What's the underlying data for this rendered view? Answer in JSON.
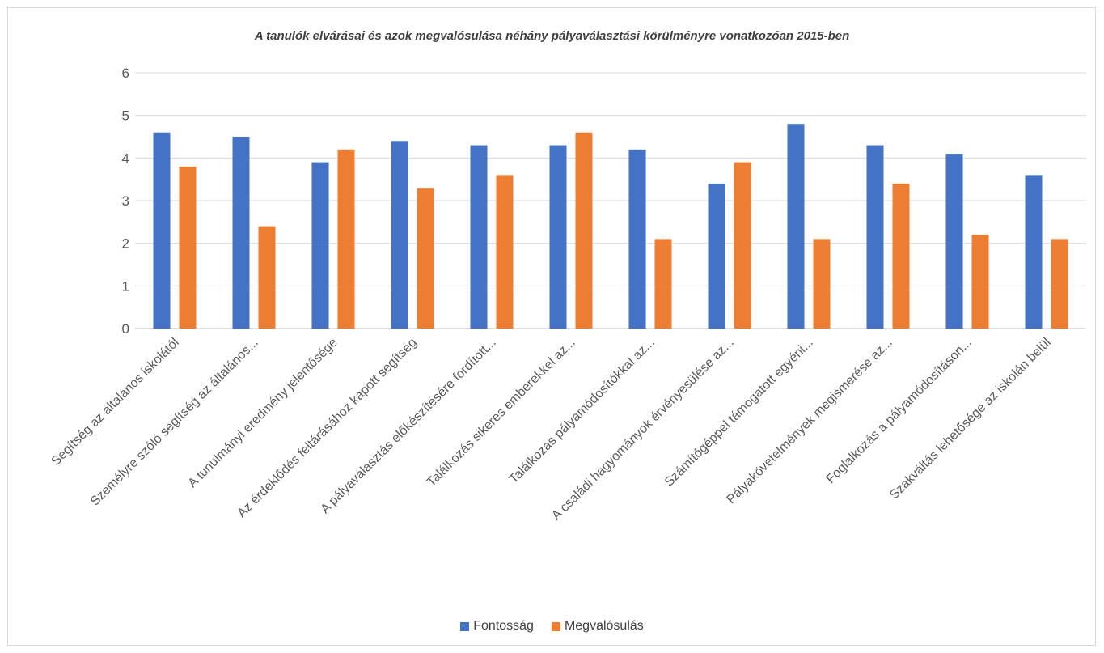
{
  "chart_data": {
    "type": "bar",
    "title": "A tanulók elvárásai és azok megvalósulása néhány pályaválasztási körülményre vonatkozóan 2015-ben",
    "categories": [
      "Segítség az általános iskolától",
      "Személyre szóló segítség az általános...",
      "A tunulmányi eredmény jelentősége",
      "Az érdeklődés feltárásához kapott segítség",
      "A pályaválasztás előkészítésére fordított...",
      "Találkozás sikeres emberekkel az...",
      "Találkozás pályamódosítókkal az...",
      "A családi hagyományok érvényesülése az...",
      "Számítógéppel támogatott egyéni...",
      "Pályakövetelmények megismerése az...",
      "Foglalkozás a pályamódosításon...",
      "Szakváltás lehetősége az iskolán belül"
    ],
    "series": [
      {
        "name": "Fontosság",
        "color": "#4472c4",
        "values": [
          4.6,
          4.5,
          3.9,
          4.4,
          4.3,
          4.3,
          4.2,
          3.4,
          4.8,
          4.3,
          4.1,
          3.6
        ]
      },
      {
        "name": "Megvalósulás",
        "color": "#ed7d31",
        "values": [
          3.8,
          2.4,
          4.2,
          3.3,
          3.6,
          4.6,
          2.1,
          3.9,
          2.1,
          3.4,
          2.2,
          2.1
        ]
      }
    ],
    "ylim": [
      0,
      6
    ],
    "yticks": [
      0,
      1,
      2,
      3,
      4,
      5,
      6
    ],
    "grid": true,
    "legend_position": "bottom"
  }
}
